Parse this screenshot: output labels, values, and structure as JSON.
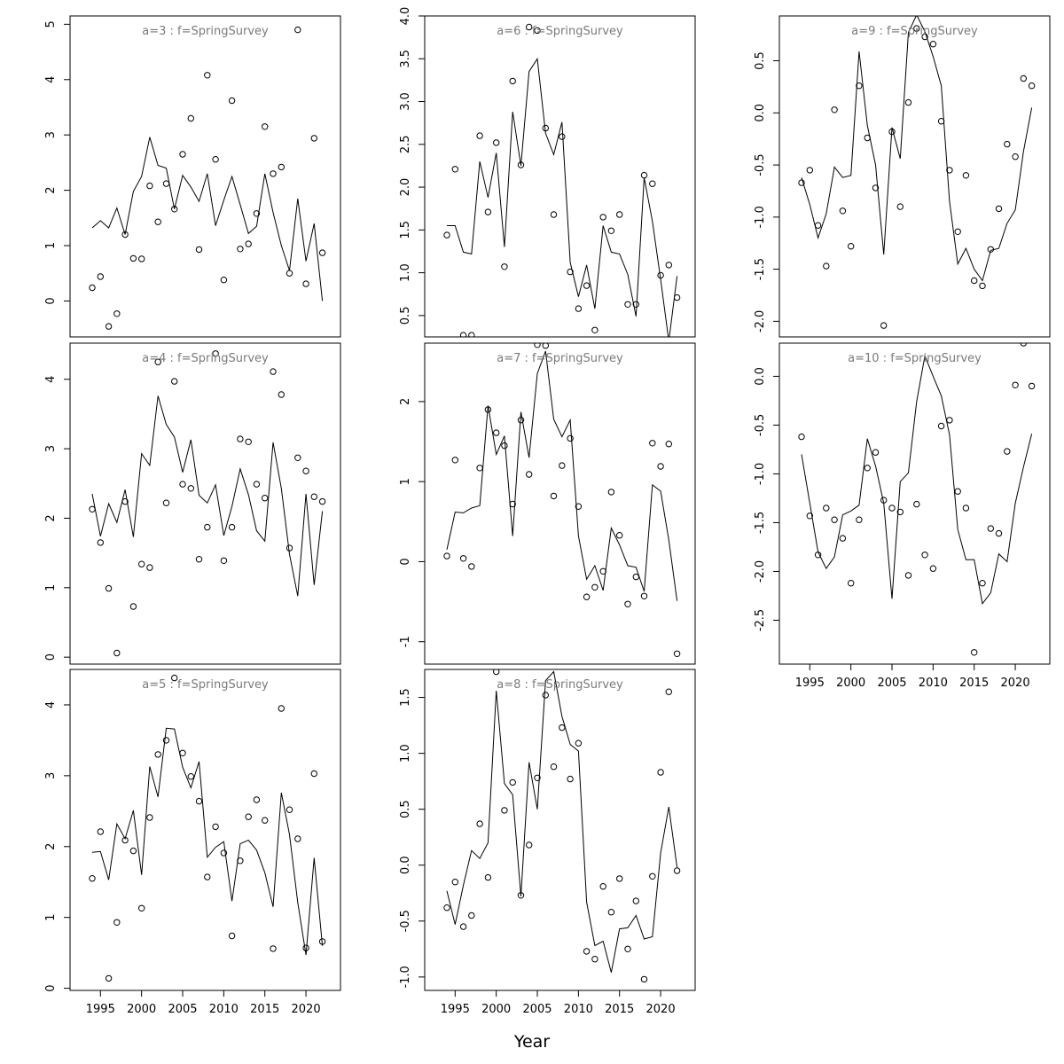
{
  "figure": {
    "xlabel": "Year"
  },
  "chart_data": [
    {
      "type": "scatter",
      "title": "a=3  :  f=SpringSurvey",
      "x": [
        1994,
        1995,
        1996,
        1997,
        1998,
        1999,
        2000,
        2001,
        2002,
        2003,
        2004,
        2005,
        2006,
        2007,
        2008,
        2009,
        2010,
        2011,
        2012,
        2013,
        2014,
        2015,
        2016,
        2017,
        2018,
        2019,
        2020,
        2021,
        2022
      ],
      "xlim": [
        1991.3,
        2024.2
      ],
      "ylim": [
        -0.65,
        5.15
      ],
      "yticks": [
        0,
        1,
        2,
        3,
        4,
        5
      ],
      "xticks": [],
      "series": [
        {
          "kind": "points",
          "values": [
            0.24,
            0.44,
            -0.46,
            -0.23,
            1.2,
            0.77,
            0.76,
            2.08,
            1.43,
            2.12,
            1.66,
            2.65,
            3.3,
            0.93,
            4.08,
            2.56,
            0.38,
            3.62,
            0.94,
            1.03,
            1.58,
            3.15,
            2.3,
            2.42,
            0.5,
            4.9,
            0.31,
            2.94,
            0.87
          ]
        },
        {
          "kind": "line",
          "values": [
            1.32,
            1.45,
            1.32,
            1.68,
            1.2,
            1.98,
            2.25,
            2.96,
            2.45,
            2.4,
            1.66,
            2.27,
            2.06,
            1.8,
            2.3,
            1.36,
            1.82,
            2.25,
            1.74,
            1.22,
            1.35,
            2.3,
            1.6,
            1.0,
            0.55,
            1.85,
            0.72,
            1.4,
            0.0
          ]
        }
      ]
    },
    {
      "type": "scatter",
      "title": "a=6  :  f=SpringSurvey",
      "x": [
        1994,
        1995,
        1996,
        1997,
        1998,
        1999,
        2000,
        2001,
        2002,
        2003,
        2004,
        2005,
        2006,
        2007,
        2008,
        2009,
        2010,
        2011,
        2012,
        2013,
        2014,
        2015,
        2016,
        2017,
        2018,
        2019,
        2020,
        2021,
        2022
      ],
      "xlim": [
        1991.3,
        2024.2
      ],
      "ylim": [
        0.25,
        4.0
      ],
      "yticks": [
        0.5,
        1.0,
        1.5,
        2.0,
        2.5,
        3.0,
        3.5,
        4.0
      ],
      "xticks": [],
      "series": [
        {
          "kind": "points",
          "values": [
            1.44,
            2.21,
            0.27,
            0.27,
            2.6,
            1.71,
            2.52,
            1.07,
            3.24,
            2.26,
            3.87,
            3.83,
            2.69,
            1.68,
            2.59,
            1.01,
            0.58,
            0.85,
            0.33,
            1.65,
            1.49,
            1.68,
            0.63,
            0.63,
            2.14,
            2.04,
            0.97,
            1.09,
            0.71
          ]
        },
        {
          "kind": "line",
          "values": [
            1.55,
            1.55,
            1.24,
            1.22,
            2.3,
            1.88,
            2.4,
            1.3,
            2.88,
            2.25,
            3.35,
            3.5,
            2.63,
            2.38,
            2.76,
            1.12,
            0.72,
            1.09,
            0.58,
            1.55,
            1.24,
            1.22,
            0.98,
            0.49,
            2.11,
            1.6,
            0.92,
            0.2,
            0.96
          ]
        }
      ]
    },
    {
      "type": "scatter",
      "title": "a=9  :  f=SpringSurvey",
      "x": [
        1994,
        1995,
        1996,
        1997,
        1998,
        1999,
        2000,
        2001,
        2002,
        2003,
        2004,
        2005,
        2006,
        2007,
        2008,
        2009,
        2010,
        2011,
        2012,
        2013,
        2014,
        2015,
        2016,
        2017,
        2018,
        2019,
        2020,
        2021,
        2022
      ],
      "xlim": [
        1991.3,
        2024.2
      ],
      "ylim": [
        -2.15,
        0.93
      ],
      "yticks": [
        -2.0,
        -1.5,
        -1.0,
        -0.5,
        0.0,
        0.5
      ],
      "xticks": [],
      "series": [
        {
          "kind": "points",
          "values": [
            -0.67,
            -0.55,
            -1.08,
            -1.47,
            0.03,
            -0.94,
            -1.28,
            0.26,
            -0.24,
            -0.72,
            -2.04,
            -0.18,
            -0.9,
            0.1,
            0.81,
            0.73,
            0.66,
            -0.08,
            -0.55,
            -1.14,
            -0.6,
            -1.61,
            -1.66,
            -1.31,
            -0.92,
            -0.3,
            -0.42,
            0.33,
            0.26
          ]
        },
        {
          "kind": "line",
          "values": [
            -0.62,
            -0.88,
            -1.2,
            -0.97,
            -0.52,
            -0.62,
            -0.6,
            0.59,
            -0.12,
            -0.5,
            -1.36,
            -0.14,
            -0.44,
            0.77,
            0.94,
            0.78,
            0.54,
            0.26,
            -0.85,
            -1.45,
            -1.3,
            -1.5,
            -1.61,
            -1.32,
            -1.3,
            -1.06,
            -0.93,
            -0.37,
            0.05
          ]
        }
      ]
    },
    {
      "type": "scatter",
      "title": "a=4  :  f=SpringSurvey",
      "x": [
        1994,
        1995,
        1996,
        1997,
        1998,
        1999,
        2000,
        2001,
        2002,
        2003,
        2004,
        2005,
        2006,
        2007,
        2008,
        2009,
        2010,
        2011,
        2012,
        2013,
        2014,
        2015,
        2016,
        2017,
        2018,
        2019,
        2020,
        2021,
        2022
      ],
      "xlim": [
        1991.3,
        2024.2
      ],
      "ylim": [
        -0.1,
        4.52
      ],
      "yticks": [
        0,
        1,
        2,
        3,
        4
      ],
      "xticks": [],
      "series": [
        {
          "kind": "points",
          "values": [
            2.13,
            1.65,
            0.99,
            0.06,
            2.24,
            0.73,
            1.34,
            1.29,
            4.25,
            2.22,
            3.97,
            2.49,
            2.43,
            1.41,
            1.87,
            4.37,
            1.39,
            1.87,
            3.14,
            3.1,
            2.49,
            2.29,
            4.11,
            3.78,
            1.57,
            2.87,
            2.68,
            2.31,
            2.24
          ]
        },
        {
          "kind": "line",
          "values": [
            2.35,
            1.74,
            2.21,
            1.94,
            2.41,
            1.73,
            2.93,
            2.76,
            3.76,
            3.35,
            3.17,
            2.66,
            3.13,
            2.33,
            2.22,
            2.48,
            1.75,
            2.17,
            2.71,
            2.34,
            1.82,
            1.67,
            3.09,
            2.43,
            1.48,
            0.88,
            2.35,
            1.04,
            2.1
          ]
        }
      ]
    },
    {
      "type": "scatter",
      "title": "a=7  :  f=SpringSurvey",
      "x": [
        1994,
        1995,
        1996,
        1997,
        1998,
        1999,
        2000,
        2001,
        2002,
        2003,
        2004,
        2005,
        2006,
        2007,
        2008,
        2009,
        2010,
        2011,
        2012,
        2013,
        2014,
        2015,
        2016,
        2017,
        2018,
        2019,
        2020,
        2021,
        2022
      ],
      "xlim": [
        1991.3,
        2024.2
      ],
      "ylim": [
        -1.28,
        2.73
      ],
      "yticks": [
        -1,
        0,
        1,
        2
      ],
      "xticks": [],
      "series": [
        {
          "kind": "points",
          "values": [
            0.07,
            1.27,
            0.04,
            -0.06,
            1.17,
            1.9,
            1.61,
            1.45,
            0.72,
            1.77,
            1.09,
            2.71,
            2.7,
            0.82,
            1.2,
            1.54,
            0.69,
            -0.44,
            -0.32,
            -0.12,
            0.87,
            0.33,
            -0.53,
            -0.19,
            -0.43,
            1.48,
            1.19,
            1.47,
            -1.15
          ]
        },
        {
          "kind": "line",
          "values": [
            0.15,
            0.62,
            0.61,
            0.67,
            0.7,
            1.95,
            1.34,
            1.57,
            0.32,
            1.87,
            1.3,
            2.35,
            2.63,
            1.78,
            1.56,
            1.77,
            0.32,
            -0.22,
            -0.05,
            -0.36,
            0.42,
            0.21,
            -0.05,
            -0.07,
            -0.37,
            0.96,
            0.88,
            0.27,
            -0.49
          ]
        }
      ]
    },
    {
      "type": "line",
      "title": "a=10  :  f=SpringSurvey",
      "x": [
        1994,
        1995,
        1996,
        1997,
        1998,
        1999,
        2000,
        2001,
        2002,
        2003,
        2004,
        2005,
        2006,
        2007,
        2008,
        2009,
        2010,
        2011,
        2012,
        2013,
        2014,
        2015,
        2016,
        2017,
        2018,
        2019,
        2020,
        2021,
        2022
      ],
      "xlim": [
        1991.3,
        2024.2
      ],
      "ylim": [
        -2.95,
        0.34
      ],
      "yticks": [
        -2.5,
        -2.0,
        -1.5,
        -1.0,
        -0.5,
        0.0
      ],
      "xticks": [
        1995,
        2000,
        2005,
        2010,
        2015,
        2020
      ],
      "series": [
        {
          "kind": "points",
          "values": [
            -0.62,
            -1.43,
            -1.83,
            -1.35,
            -1.47,
            -1.66,
            -2.12,
            -1.47,
            -0.94,
            -0.78,
            -1.27,
            -1.35,
            -1.39,
            -2.04,
            -1.31,
            -1.83,
            -1.97,
            -0.51,
            -0.45,
            -1.18,
            -1.35,
            -2.83,
            -2.12,
            -1.56,
            -1.61,
            -0.77,
            -0.09,
            0.34,
            -0.1
          ]
        },
        {
          "kind": "line",
          "values": [
            -0.8,
            -1.3,
            -1.8,
            -1.97,
            -1.85,
            -1.42,
            -1.38,
            -1.32,
            -0.64,
            -0.92,
            -1.3,
            -2.28,
            -1.08,
            -0.99,
            -0.26,
            0.21,
            0.0,
            -0.2,
            -0.6,
            -1.57,
            -1.88,
            -1.88,
            -2.33,
            -2.22,
            -1.82,
            -1.9,
            -1.3,
            -0.93,
            -0.59
          ]
        }
      ]
    },
    {
      "type": "scatter",
      "title": "a=5  :  f=SpringSurvey",
      "x": [
        1994,
        1995,
        1996,
        1997,
        1998,
        1999,
        2000,
        2001,
        2002,
        2003,
        2004,
        2005,
        2006,
        2007,
        2008,
        2009,
        2010,
        2011,
        2012,
        2013,
        2014,
        2015,
        2016,
        2017,
        2018,
        2019,
        2020,
        2021,
        2022
      ],
      "xlim": [
        1991.3,
        2024.2
      ],
      "ylim": [
        -0.03,
        4.5
      ],
      "yticks": [
        0,
        1,
        2,
        3,
        4
      ],
      "xticks": [
        1995,
        2000,
        2005,
        2010,
        2015,
        2020
      ],
      "series": [
        {
          "kind": "points",
          "values": [
            1.55,
            2.21,
            0.14,
            0.93,
            2.09,
            1.94,
            1.13,
            2.41,
            3.3,
            3.5,
            4.38,
            3.32,
            2.99,
            2.64,
            1.57,
            2.28,
            1.91,
            0.74,
            1.8,
            2.42,
            2.66,
            2.37,
            0.56,
            3.95,
            2.52,
            2.11,
            0.57,
            3.03,
            0.66
          ]
        },
        {
          "kind": "line",
          "values": [
            1.92,
            1.93,
            1.53,
            2.32,
            2.11,
            2.51,
            1.6,
            3.13,
            2.7,
            3.67,
            3.66,
            3.12,
            2.83,
            3.2,
            1.85,
            1.99,
            2.07,
            1.23,
            2.04,
            2.09,
            1.95,
            1.63,
            1.15,
            2.76,
            2.17,
            1.21,
            0.47,
            1.84,
            0.6
          ]
        }
      ]
    },
    {
      "type": "line",
      "title": "a=8  :  f=SpringSurvey",
      "x": [
        1994,
        1995,
        1996,
        1997,
        1998,
        1999,
        2000,
        2001,
        2002,
        2003,
        2004,
        2005,
        2006,
        2007,
        2008,
        2009,
        2010,
        2011,
        2012,
        2013,
        2014,
        2015,
        2016,
        2017,
        2018,
        2019,
        2020,
        2021,
        2022
      ],
      "xlim": [
        1991.3,
        2024.2
      ],
      "ylim": [
        -1.12,
        1.75
      ],
      "yticks": [
        -1.0,
        -0.5,
        0.0,
        0.5,
        1.0,
        1.5
      ],
      "xticks": [
        1995,
        2000,
        2005,
        2010,
        2015,
        2020
      ],
      "series": [
        {
          "kind": "points",
          "values": [
            -0.38,
            -0.15,
            -0.55,
            -0.45,
            0.37,
            -0.11,
            1.73,
            0.49,
            0.74,
            -0.27,
            0.18,
            0.78,
            1.52,
            0.88,
            1.23,
            0.77,
            1.09,
            -0.77,
            -0.84,
            -0.19,
            -0.42,
            -0.12,
            -0.75,
            -0.32,
            -1.02,
            -0.1,
            0.83,
            1.55,
            -0.05
          ]
        },
        {
          "kind": "line",
          "values": [
            -0.23,
            -0.53,
            -0.18,
            0.13,
            0.06,
            0.2,
            1.56,
            0.73,
            0.63,
            -0.28,
            0.92,
            0.5,
            1.65,
            1.73,
            1.33,
            1.08,
            1.02,
            -0.33,
            -0.72,
            -0.68,
            -0.96,
            -0.57,
            -0.56,
            -0.45,
            -0.66,
            -0.64,
            0.11,
            0.52,
            -0.02
          ]
        }
      ]
    }
  ]
}
